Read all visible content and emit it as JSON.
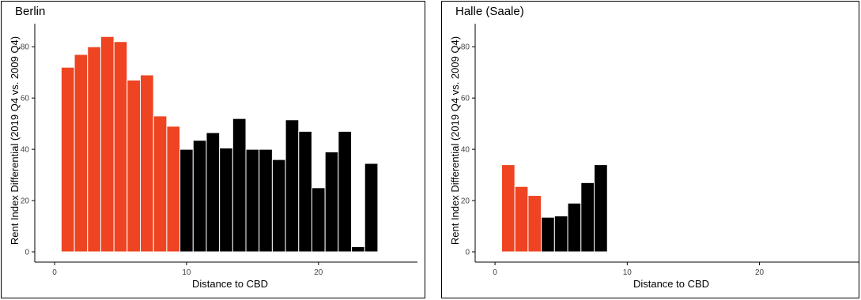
{
  "colors": {
    "inner": "#ee4422",
    "outer": "#000000",
    "bar_edge": "#ffffff",
    "frame": "#000000",
    "text": "#000000",
    "tick_text": "#444444"
  },
  "chart_data": [
    {
      "type": "bar",
      "title": "Berlin",
      "xlabel": "Distance to CBD",
      "ylabel": "Rent Index Differential (2019 Q4 vs. 2009 Q4)",
      "xlim": [
        -1.5,
        27.5
      ],
      "ylim": [
        -4,
        89
      ],
      "xticks": [
        0,
        10,
        20
      ],
      "yticks": [
        0,
        20,
        40,
        60,
        80
      ],
      "bar_width": 1,
      "grid": false,
      "legend": "none",
      "x": [
        1,
        2,
        3,
        4,
        5,
        6,
        7,
        8,
        9,
        10,
        11,
        12,
        13,
        14,
        15,
        16,
        17,
        18,
        19,
        20,
        21,
        22,
        23,
        24
      ],
      "values": [
        72,
        77,
        80,
        84,
        82,
        67,
        69,
        53,
        49,
        40,
        43.5,
        46.5,
        40.5,
        52,
        40,
        40,
        36,
        51.5,
        47,
        25,
        39,
        47,
        2,
        34.5
      ],
      "groups": [
        "inner",
        "inner",
        "inner",
        "inner",
        "inner",
        "inner",
        "inner",
        "inner",
        "inner",
        "outer",
        "outer",
        "outer",
        "outer",
        "outer",
        "outer",
        "outer",
        "outer",
        "outer",
        "outer",
        "outer",
        "outer",
        "outer",
        "outer",
        "outer"
      ]
    },
    {
      "type": "bar",
      "title": "Halle (Saale)",
      "xlabel": "Distance to CBD",
      "ylabel": "Rent Index Differential (2019 Q4 vs. 2009 Q4)",
      "xlim": [
        -1.5,
        27.5
      ],
      "ylim": [
        -4,
        89
      ],
      "xticks": [
        0,
        10,
        20
      ],
      "yticks": [
        0,
        20,
        40,
        60,
        80
      ],
      "bar_width": 1,
      "grid": false,
      "legend": "none",
      "x": [
        1,
        2,
        3,
        4,
        5,
        6,
        7,
        8
      ],
      "values": [
        34,
        25.5,
        22,
        13.5,
        14,
        19,
        27,
        34
      ],
      "groups": [
        "inner",
        "inner",
        "inner",
        "outer",
        "outer",
        "outer",
        "outer",
        "outer"
      ]
    }
  ]
}
